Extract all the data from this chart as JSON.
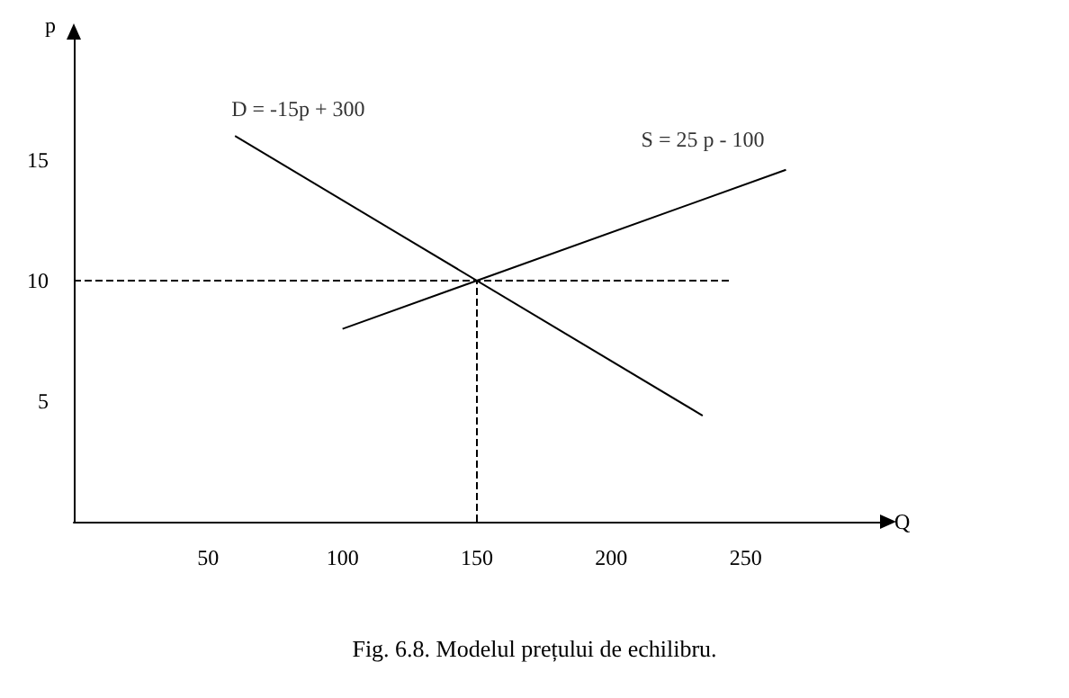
{
  "chart_data": {
    "type": "line",
    "title": "Fig. 6.8. Modelul prețului de echilibru.",
    "xlabel": "Q",
    "ylabel": "p",
    "xlim": [
      0,
      300
    ],
    "ylim": [
      0,
      20
    ],
    "xticks": [
      50,
      100,
      150,
      200,
      250
    ],
    "yticks": [
      5,
      10,
      15
    ],
    "grid": false,
    "marker": "none",
    "series": [
      {
        "color": "#000000",
        "x": [
          60,
          234
        ],
        "values": [
          16,
          4.4
        ],
        "line_style": "solid"
      },
      {
        "color": "#000000",
        "x": [
          100,
          265
        ],
        "values": [
          8,
          14.6
        ],
        "line_style": "solid"
      },
      {
        "color": "#000000",
        "x": [
          0,
          245
        ],
        "values": [
          10,
          10
        ],
        "line_style": "dashed"
      },
      {
        "color": "#000000",
        "x": [
          150,
          150
        ],
        "values": [
          0,
          10
        ],
        "line_style": "dashed"
      }
    ],
    "annotations": [
      {
        "text": "D = -15p + 300",
        "x": 60,
        "y": 16
      },
      {
        "text": "S = 25 p - 100",
        "x": 265,
        "y": 14.6
      }
    ]
  }
}
